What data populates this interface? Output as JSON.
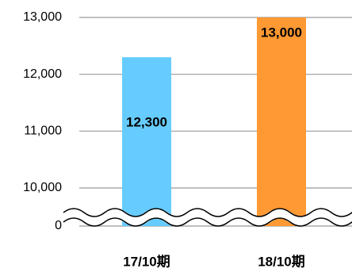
{
  "chart_data": {
    "type": "bar",
    "categories": [
      "17/10期",
      "18/10期"
    ],
    "series": [
      {
        "values": [
          12300,
          13000
        ],
        "value_labels": [
          "12,300",
          "13,000"
        ],
        "colors": [
          "#66ccff",
          "#ff9933"
        ]
      }
    ],
    "ylim": [
      0,
      13000
    ],
    "yticks": [
      {
        "value": 0,
        "label": "0"
      },
      {
        "value": 10000,
        "label": "10,000"
      },
      {
        "value": 11000,
        "label": "11,000"
      },
      {
        "value": 12000,
        "label": "12,000"
      },
      {
        "value": 13000,
        "label": "13,000"
      }
    ],
    "axis_break": true,
    "grid": true
  }
}
